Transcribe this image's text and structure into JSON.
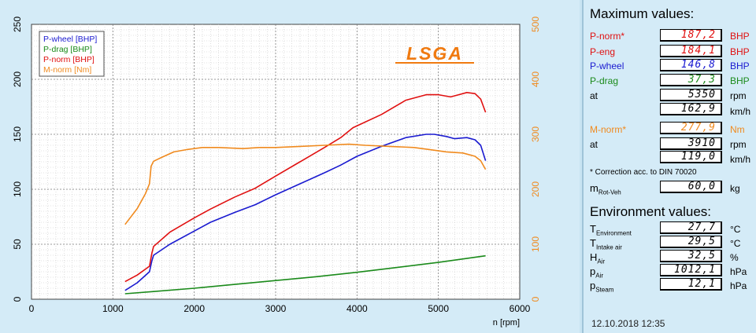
{
  "logo_text": "LSGA",
  "chart_data": {
    "type": "line",
    "xlabel": "n [rpm]",
    "xlim": [
      0,
      6000
    ],
    "x_ticks": [
      "0",
      "1000",
      "2000",
      "3000",
      "4000",
      "5000",
      "6000"
    ],
    "ylim_left": [
      0,
      250
    ],
    "y_ticks_left": [
      "0",
      "50",
      "100",
      "150",
      "200",
      "250"
    ],
    "ylim_right": [
      0,
      500
    ],
    "y_ticks_right": [
      "0",
      "100",
      "200",
      "300",
      "400",
      "500"
    ],
    "grid": true,
    "legend_position": "top-left",
    "series": [
      {
        "name": "P-wheel [BHP]",
        "color": "#1a1ad0",
        "axis": "left",
        "x": [
          1150,
          1300,
          1450,
          1480,
          1500,
          1700,
          2000,
          2200,
          2500,
          2750,
          3000,
          3300,
          3600,
          3800,
          4000,
          4300,
          4600,
          4850,
          4950,
          5100,
          5200,
          5350,
          5450,
          5520,
          5580
        ],
        "y": [
          8,
          15,
          25,
          35,
          40,
          50,
          62,
          70,
          79,
          86,
          95,
          105,
          115,
          122,
          130,
          139,
          147,
          150,
          150,
          148,
          146,
          147,
          145,
          140,
          126
        ]
      },
      {
        "name": "P-drag [BHP]",
        "color": "#1a8a1a",
        "axis": "left",
        "x": [
          1150,
          1500,
          2000,
          2500,
          3000,
          3500,
          4000,
          4500,
          5000,
          5580
        ],
        "y": [
          5,
          7,
          10,
          13.5,
          17,
          20.5,
          24.5,
          29,
          33.5,
          39.5
        ]
      },
      {
        "name": "P-norm [BHP]",
        "color": "#e01010",
        "axis": "left",
        "x": [
          1150,
          1300,
          1450,
          1480,
          1500,
          1700,
          2000,
          2200,
          2500,
          2750,
          3000,
          3300,
          3600,
          3800,
          3950,
          4300,
          4600,
          4850,
          5000,
          5150,
          5250,
          5350,
          5450,
          5520,
          5580
        ],
        "y": [
          16,
          22,
          30,
          42,
          48,
          61,
          74,
          82,
          93,
          101,
          112,
          125,
          138,
          147,
          156,
          168,
          181,
          186,
          186,
          184,
          186,
          188,
          187,
          182,
          170
        ]
      },
      {
        "name": "M-norm [Nm]",
        "color": "#f08a1e",
        "axis": "right",
        "x": [
          1150,
          1300,
          1400,
          1450,
          1470,
          1500,
          1600,
          1750,
          1900,
          2100,
          2300,
          2600,
          2800,
          3000,
          3300,
          3600,
          3900,
          4100,
          4400,
          4700,
          4900,
          5100,
          5300,
          5450,
          5520,
          5580
        ],
        "y": [
          136,
          165,
          192,
          210,
          242,
          251,
          258,
          268,
          272,
          276,
          276,
          274,
          276,
          276,
          278,
          280,
          282,
          280,
          278,
          276,
          272,
          268,
          266,
          260,
          252,
          236
        ]
      }
    ]
  },
  "panel": {
    "max_title": "Maximum values:",
    "rows": [
      {
        "label": "P-norm*",
        "value": "187,2",
        "unit": "BHP",
        "color": "#e01010"
      },
      {
        "label": "P-eng",
        "value": "184,1",
        "unit": "BHP",
        "color": "#e01010"
      },
      {
        "label": "P-wheel",
        "value": "146,8",
        "unit": "BHP",
        "color": "#1a1ad0"
      },
      {
        "label": "P-drag",
        "value": "37,3",
        "unit": "BHP",
        "color": "#1a8a1a"
      },
      {
        "label": "at",
        "value": "5350",
        "unit": "rpm",
        "color": "#000000"
      },
      {
        "label": "",
        "value": "162,9",
        "unit": "km/h",
        "color": "#000000"
      },
      {
        "label": "M-norm*",
        "value": "277,9",
        "unit": "Nm",
        "color": "#f08a1e"
      },
      {
        "label": "at",
        "value": "3910",
        "unit": "rpm",
        "color": "#000000"
      },
      {
        "label": "",
        "value": "119,0",
        "unit": "km/h",
        "color": "#000000"
      }
    ],
    "correction_note": "* Correction acc. to DIN 70020",
    "mass": {
      "label": "m",
      "label_sub": "Rot-Veh",
      "value": "60,0",
      "unit": "kg"
    },
    "env_title": "Environment values:",
    "env_rows": [
      {
        "label": "T",
        "sub": "Environment",
        "value": "27,7",
        "unit": "°C"
      },
      {
        "label": "T",
        "sub": "Intake air",
        "value": "29,5",
        "unit": "°C"
      },
      {
        "label": "H",
        "sub": "Air",
        "value": "32,5",
        "unit": "%"
      },
      {
        "label": "p",
        "sub": "Air",
        "value": "1012,1",
        "unit": "hPa"
      },
      {
        "label": "p",
        "sub": "Steam",
        "value": "12,1",
        "unit": "hPa"
      }
    ],
    "datetime": "12.10.2018  12:35"
  }
}
